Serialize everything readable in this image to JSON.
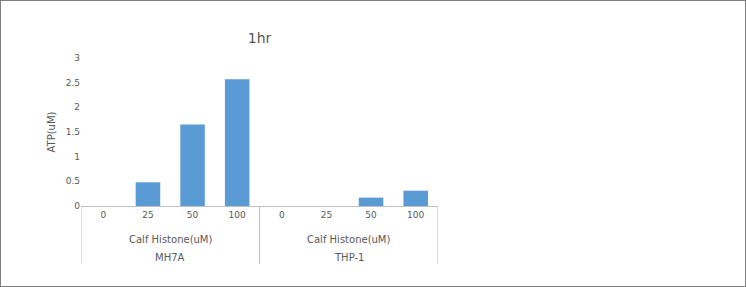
{
  "chart_data": {
    "type": "bar",
    "title": "1hr",
    "y_label": "ATP(uM)",
    "groups": [
      {
        "name": "MH7A",
        "axis_label": "Calf Histone(uM)",
        "categories": [
          "0",
          "25",
          "50",
          "100"
        ],
        "values": [
          0,
          0.48,
          1.65,
          2.57
        ]
      },
      {
        "name": "THP-1",
        "axis_label": "Calf Histone(uM)",
        "categories": [
          "0",
          "25",
          "50",
          "100"
        ],
        "values": [
          0,
          0,
          0.17,
          0.31
        ]
      }
    ],
    "color": "#5b9bd5",
    "ylim": [
      0,
      3
    ],
    "yticks": [
      0,
      0.5,
      1,
      1.5,
      2,
      2.5,
      3
    ],
    "grid": false
  }
}
